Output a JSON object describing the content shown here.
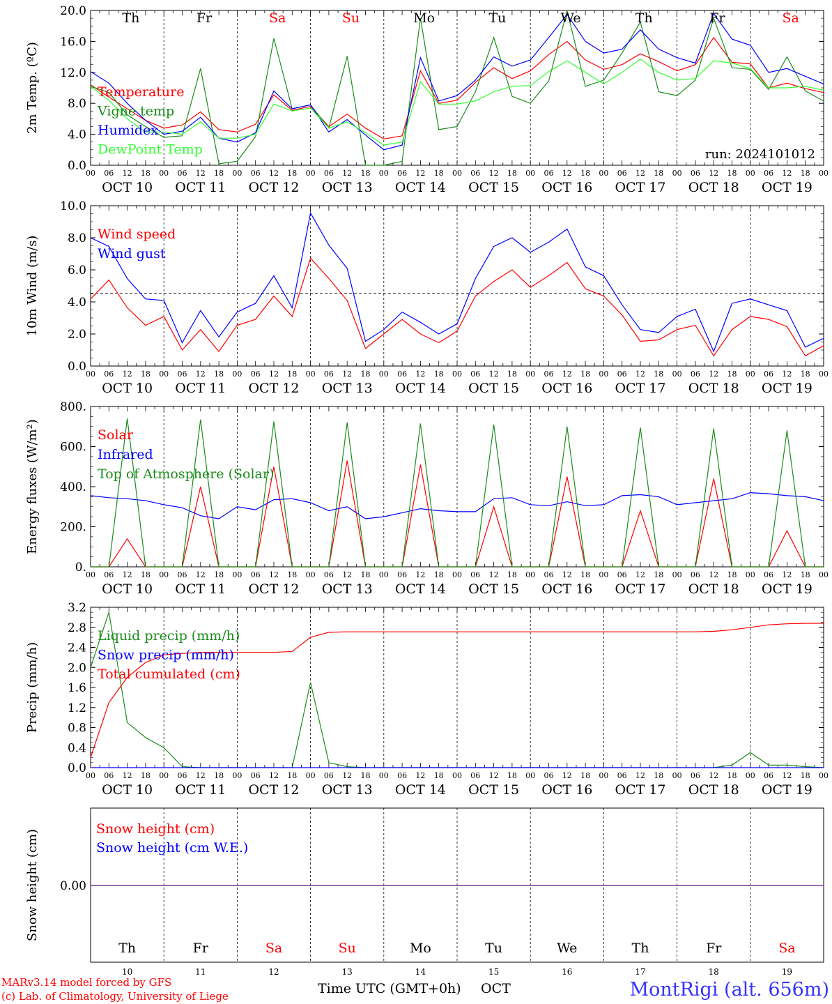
{
  "colors": {
    "red": "#ff0000",
    "green": "#1a8c1a",
    "blue": "#0000ff",
    "lightgreen": "#33ff33",
    "purple": "#7b2fa0",
    "axis": "#000000"
  },
  "weekdays": [
    {
      "label": "Th",
      "weekend": false
    },
    {
      "label": "Fr",
      "weekend": false
    },
    {
      "label": "Sa",
      "weekend": true
    },
    {
      "label": "Su",
      "weekend": true
    },
    {
      "label": "Mo",
      "weekend": false
    },
    {
      "label": "Tu",
      "weekend": false
    },
    {
      "label": "We",
      "weekend": false
    },
    {
      "label": "Th",
      "weekend": false
    },
    {
      "label": "Fr",
      "weekend": false
    },
    {
      "label": "Sa",
      "weekend": true
    }
  ],
  "date_labels": [
    "OCT 10",
    "OCT 11",
    "OCT 12",
    "OCT 13",
    "OCT 14",
    "OCT 15",
    "OCT 16",
    "OCT 17",
    "OCT 18",
    "OCT 19"
  ],
  "hour_labels": [
    "00",
    "06",
    "12",
    "18"
  ],
  "day_numbers": [
    "10",
    "11",
    "12",
    "13",
    "14",
    "15",
    "16",
    "17",
    "18",
    "19"
  ],
  "footer": {
    "model": "MARv3.14 model forced by GFS",
    "credit": "(c) Lab. of Climatology, University of Liege",
    "xlabel": "Time UTC (GMT+0h)",
    "month": "OCT",
    "station": "MontRigi (alt. 656m)"
  },
  "chart_data": [
    {
      "type": "line",
      "ylabel": "2m Temp. (ºC)",
      "ylim": [
        0,
        20
      ],
      "yticks": [
        "0.0",
        "4.0",
        "8.0",
        "12.0",
        "16.0",
        "20.0"
      ],
      "run_label": "run: 2024101012",
      "x_days": [
        0,
        0.25,
        0.5,
        0.75,
        1,
        1.25,
        1.5,
        1.75,
        2,
        2.25,
        2.5,
        2.75,
        3,
        3.25,
        3.5,
        3.75,
        4,
        4.25,
        4.5,
        4.75,
        5,
        5.25,
        5.5,
        5.75,
        6,
        6.25,
        6.5,
        6.75,
        7,
        7.25,
        7.5,
        7.75,
        8,
        8.25,
        8.5,
        8.75,
        9,
        9.25,
        9.5,
        9.75,
        10
      ],
      "series": [
        {
          "name": "Temperature",
          "color": "red",
          "values": [
            10.4,
            8.8,
            7.3,
            5.8,
            4.8,
            5.2,
            6.9,
            4.6,
            4.3,
            5.3,
            9.1,
            7.1,
            7.6,
            5.0,
            6.6,
            4.8,
            3.4,
            3.8,
            12.2,
            8.0,
            8.4,
            10.7,
            12.6,
            11.2,
            12.2,
            14.3,
            16.0,
            13.6,
            12.4,
            13.0,
            14.4,
            13.4,
            12.2,
            13.0,
            16.5,
            13.3,
            13.1,
            10.0,
            10.6,
            9.9,
            9.4
          ]
        },
        {
          "name": "Vigne temp",
          "color": "green",
          "values": [
            10.2,
            9.4,
            6.5,
            5.0,
            3.6,
            3.8,
            12.5,
            0.2,
            0.5,
            3.7,
            16.4,
            7.3,
            7.8,
            4.8,
            14.1,
            0.0,
            0.0,
            0.5,
            19.0,
            4.6,
            5.0,
            9.5,
            16.5,
            8.9,
            8.0,
            10.9,
            20.0,
            10.2,
            11.0,
            14.5,
            18.5,
            9.5,
            9.0,
            11.0,
            19.0,
            12.6,
            12.4,
            9.8,
            14.0,
            9.6,
            8.3
          ]
        },
        {
          "name": "Humidex",
          "color": "blue",
          "values": [
            12.1,
            10.6,
            8.0,
            5.8,
            4.0,
            4.4,
            6.2,
            3.5,
            3.0,
            4.2,
            9.6,
            7.3,
            7.8,
            4.3,
            5.9,
            3.9,
            2.0,
            2.6,
            13.9,
            8.3,
            9.0,
            11.0,
            14.0,
            12.8,
            13.6,
            16.5,
            19.5,
            16.0,
            14.5,
            15.0,
            17.5,
            15.0,
            13.9,
            13.2,
            19.6,
            16.3,
            15.5,
            12.0,
            12.5,
            11.5,
            10.5
          ]
        },
        {
          "name": "DewPoint Temp",
          "color": "lightgreen",
          "values": [
            10.2,
            8.4,
            6.0,
            4.3,
            4.3,
            4.0,
            5.6,
            3.5,
            3.5,
            4.0,
            7.9,
            7.0,
            7.4,
            4.8,
            5.6,
            4.2,
            2.6,
            3.0,
            10.8,
            7.9,
            7.9,
            8.3,
            9.5,
            10.2,
            10.3,
            12.1,
            13.5,
            12.0,
            10.5,
            12.0,
            13.7,
            12.0,
            11.0,
            11.2,
            13.5,
            13.2,
            12.5,
            10.0,
            10.0,
            10.2,
            9.7
          ]
        }
      ]
    },
    {
      "type": "line",
      "ylabel": "10m Wind (m/s)",
      "ylim": [
        0,
        11
      ],
      "yticks": [
        "0.0",
        "2.0",
        "4.0",
        "6.0",
        "8.0",
        "10.0"
      ],
      "reference_line": 5.0,
      "x_days": [
        0,
        0.25,
        0.5,
        0.75,
        1,
        1.25,
        1.5,
        1.75,
        2,
        2.25,
        2.5,
        2.75,
        3,
        3.25,
        3.5,
        3.75,
        4,
        4.25,
        4.5,
        4.75,
        5,
        5.25,
        5.5,
        5.75,
        6,
        6.25,
        6.5,
        6.75,
        7,
        7.25,
        7.5,
        7.75,
        8,
        8.25,
        8.5,
        8.75,
        9,
        9.25,
        9.5,
        9.75,
        10
      ],
      "series": [
        {
          "name": "Wind speed",
          "color": "red",
          "values": [
            4.6,
            5.9,
            4.0,
            2.8,
            3.4,
            1.1,
            2.5,
            1.0,
            2.8,
            3.2,
            4.8,
            3.4,
            7.4,
            6.0,
            4.5,
            1.2,
            2.2,
            3.2,
            2.2,
            1.6,
            2.4,
            4.8,
            5.8,
            6.6,
            5.4,
            6.2,
            7.1,
            5.3,
            4.8,
            3.5,
            1.7,
            1.8,
            2.5,
            2.8,
            0.7,
            2.5,
            3.4,
            3.2,
            2.7,
            0.7,
            1.4
          ]
        },
        {
          "name": "Wind gust",
          "color": "blue",
          "values": [
            8.8,
            8.2,
            6.0,
            4.6,
            4.5,
            1.6,
            3.8,
            2.0,
            3.7,
            4.3,
            6.2,
            4.0,
            10.5,
            8.3,
            6.7,
            1.7,
            2.5,
            3.7,
            3.0,
            2.2,
            2.9,
            6.0,
            8.2,
            8.8,
            7.8,
            8.5,
            9.4,
            6.8,
            6.2,
            4.2,
            2.5,
            2.3,
            3.4,
            3.9,
            1.0,
            4.3,
            4.6,
            4.2,
            3.8,
            1.3,
            1.9
          ]
        }
      ]
    },
    {
      "type": "line",
      "ylabel": "Energy fluxes (W/m²)",
      "ylim": [
        0,
        800
      ],
      "yticks": [
        "0.",
        "200.",
        "400.",
        "600.",
        "800."
      ],
      "x_days": [
        0,
        0.25,
        0.5,
        0.75,
        1,
        1.25,
        1.5,
        1.75,
        2,
        2.25,
        2.5,
        2.75,
        3,
        3.25,
        3.5,
        3.75,
        4,
        4.25,
        4.5,
        4.75,
        5,
        5.25,
        5.5,
        5.75,
        6,
        6.25,
        6.5,
        6.75,
        7,
        7.25,
        7.5,
        7.75,
        8,
        8.25,
        8.5,
        8.75,
        9,
        9.25,
        9.5,
        9.75,
        10
      ],
      "series": [
        {
          "name": "Solar",
          "color": "red",
          "values": [
            0,
            0,
            140,
            0,
            0,
            0,
            400,
            0,
            0,
            0,
            500,
            0,
            0,
            0,
            530,
            0,
            0,
            0,
            510,
            0,
            0,
            0,
            300,
            0,
            0,
            0,
            450,
            0,
            0,
            0,
            280,
            0,
            0,
            0,
            440,
            0,
            0,
            0,
            180,
            0,
            0
          ]
        },
        {
          "name": "Infrared",
          "color": "blue",
          "values": [
            355,
            345,
            340,
            330,
            310,
            295,
            255,
            240,
            300,
            285,
            335,
            340,
            320,
            280,
            300,
            240,
            250,
            270,
            290,
            280,
            275,
            275,
            340,
            345,
            310,
            305,
            325,
            305,
            310,
            355,
            360,
            350,
            310,
            320,
            330,
            340,
            370,
            365,
            355,
            350,
            330
          ]
        },
        {
          "name": "Top of Atmosphere (Solar)",
          "color": "green",
          "values": [
            0,
            0,
            740,
            0,
            0,
            0,
            735,
            0,
            0,
            0,
            725,
            0,
            0,
            0,
            720,
            0,
            0,
            0,
            715,
            0,
            0,
            0,
            710,
            0,
            0,
            0,
            700,
            0,
            0,
            0,
            695,
            0,
            0,
            0,
            690,
            0,
            0,
            0,
            680,
            0,
            0
          ]
        }
      ]
    },
    {
      "type": "line",
      "ylabel": "Precip (mm/h)",
      "ylim": [
        0,
        3.2
      ],
      "yticks": [
        "0.0",
        "0.4",
        "0.8",
        "1.2",
        "1.6",
        "2.0",
        "2.4",
        "2.8",
        "3.2"
      ],
      "x_days": [
        0,
        0.25,
        0.5,
        0.75,
        1,
        1.25,
        1.5,
        1.75,
        2,
        2.25,
        2.5,
        2.75,
        3,
        3.25,
        3.5,
        3.75,
        4,
        4.25,
        4.5,
        4.75,
        5,
        5.25,
        5.5,
        5.75,
        6,
        6.25,
        6.5,
        6.75,
        7,
        7.25,
        7.5,
        7.75,
        8,
        8.25,
        8.5,
        8.75,
        9,
        9.25,
        9.5,
        9.75,
        10
      ],
      "series": [
        {
          "name": "Liquid precip (mm/h)",
          "color": "green",
          "values": [
            2.0,
            3.1,
            0.9,
            0.6,
            0.4,
            0.02,
            0,
            0,
            0,
            0,
            0,
            0,
            1.7,
            0.1,
            0.02,
            0,
            0,
            0,
            0,
            0,
            0,
            0,
            0,
            0,
            0,
            0,
            0,
            0,
            0,
            0,
            0,
            0,
            0,
            0,
            0,
            0.05,
            0.3,
            0.05,
            0.05,
            0.02,
            0
          ]
        },
        {
          "name": "Snow precip (mm/h)",
          "color": "blue",
          "values": [
            0,
            0,
            0,
            0,
            0,
            0,
            0,
            0,
            0,
            0,
            0,
            0,
            0,
            0,
            0,
            0,
            0,
            0,
            0,
            0,
            0,
            0,
            0,
            0,
            0,
            0,
            0,
            0,
            0,
            0,
            0,
            0,
            0,
            0,
            0,
            0,
            0,
            0,
            0,
            0,
            0
          ]
        },
        {
          "name": "Total cumulated (cm)",
          "color": "red",
          "values": [
            0.2,
            1.3,
            1.8,
            2.1,
            2.25,
            2.28,
            2.3,
            2.3,
            2.3,
            2.3,
            2.3,
            2.32,
            2.6,
            2.7,
            2.71,
            2.71,
            2.71,
            2.71,
            2.71,
            2.71,
            2.71,
            2.71,
            2.71,
            2.71,
            2.71,
            2.71,
            2.71,
            2.71,
            2.71,
            2.71,
            2.71,
            2.71,
            2.71,
            2.71,
            2.72,
            2.75,
            2.8,
            2.85,
            2.87,
            2.88,
            2.88
          ]
        }
      ]
    },
    {
      "type": "line",
      "ylabel": "Snow height (cm)",
      "yticks": [
        "0.00"
      ],
      "x_days": [
        0,
        10
      ],
      "series": [
        {
          "name": "Snow height (cm)",
          "color": "red",
          "values": [
            0,
            0
          ]
        },
        {
          "name": "Snow height (cm W.E.)",
          "color": "blue",
          "values": [
            0,
            0
          ]
        }
      ]
    }
  ]
}
